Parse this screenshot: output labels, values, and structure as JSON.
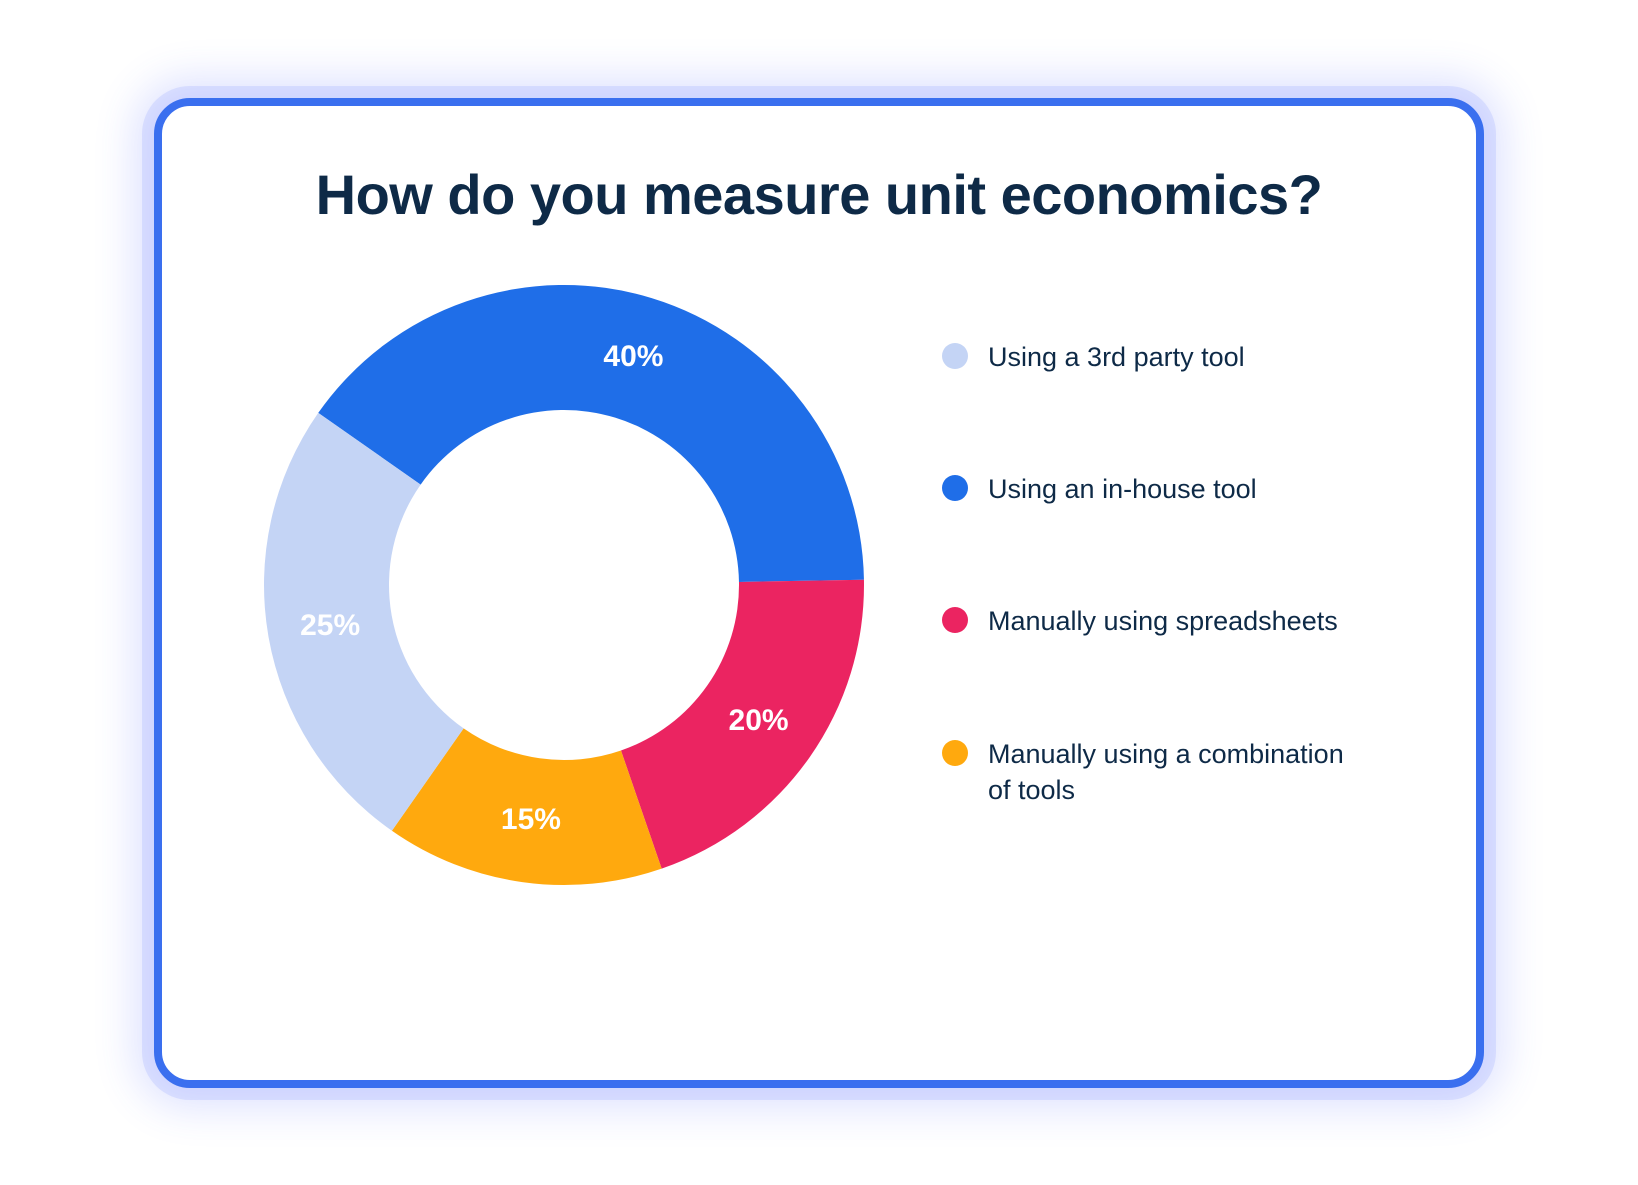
{
  "title": "How do you measure unit economics?",
  "chart": {
    "type": "donut",
    "start_angle_deg": 305,
    "direction": "clockwise",
    "outer_radius": 300,
    "inner_radius": 175,
    "background_color": "#ffffff",
    "title_color": "#0e2a47",
    "title_fontsize": 56,
    "label_color": "#ffffff",
    "label_fontsize": 30,
    "legend_fontsize": 27,
    "legend_text_color": "#0e2a47",
    "card_border_color": "#3a6fef",
    "card_border_radius": 36,
    "slices": [
      {
        "key": "inhouse",
        "label": "Using an in-house tool",
        "value": 40,
        "display": "40%",
        "color": "#1f6ee8"
      },
      {
        "key": "spreadsheets",
        "label": "Manually using spreadsheets",
        "value": 20,
        "display": "20%",
        "color": "#eb2461"
      },
      {
        "key": "combination",
        "label": "Manually using a combination of tools",
        "value": 15,
        "display": "15%",
        "color": "#ffa90e"
      },
      {
        "key": "thirdparty",
        "label": "Using a 3rd party tool",
        "value": 25,
        "display": "25%",
        "color": "#c4d4f5"
      }
    ],
    "legend_order": [
      "thirdparty",
      "inhouse",
      "spreadsheets",
      "combination"
    ]
  }
}
